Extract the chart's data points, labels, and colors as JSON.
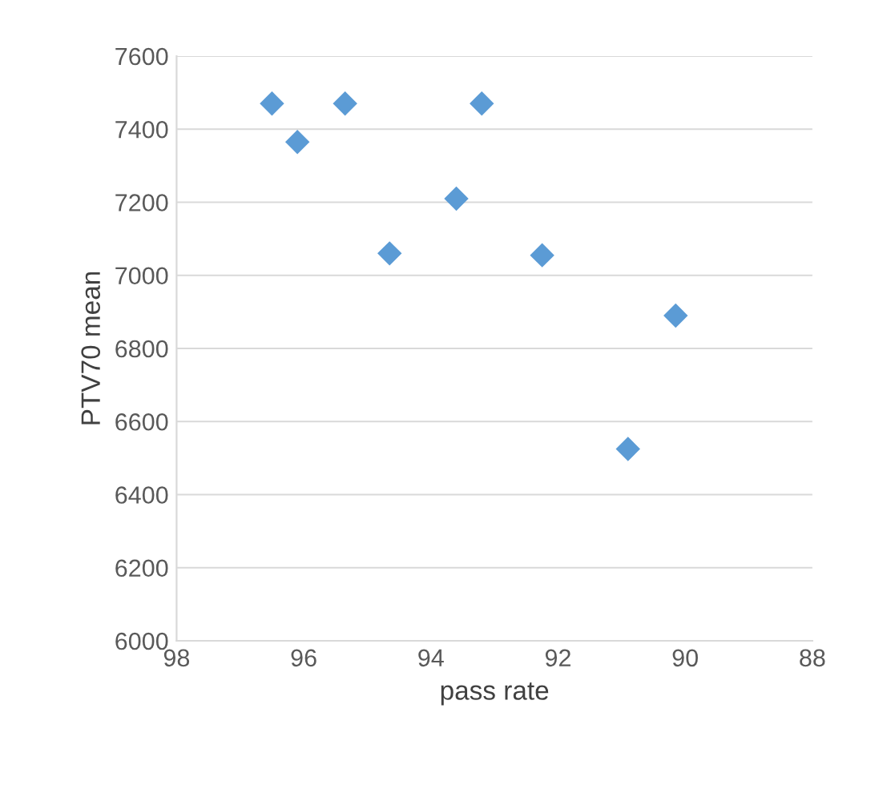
{
  "chart_data": {
    "type": "scatter",
    "xlabel": "pass rate",
    "ylabel": "PTV70 mean",
    "x": [
      96.5,
      96.1,
      95.35,
      94.65,
      93.6,
      93.2,
      92.25,
      90.9,
      90.15
    ],
    "series": [
      {
        "color": "#5b9bd5",
        "values": [
          7470,
          7365,
          7470,
          7060,
          7210,
          7470,
          7055,
          6525,
          6890
        ]
      }
    ],
    "xlim": [
      98,
      88
    ],
    "xticks": [
      98,
      96,
      94,
      92,
      90,
      88
    ],
    "ylim": [
      6000,
      7600
    ],
    "yticks": [
      6000,
      6200,
      6400,
      6600,
      6800,
      7000,
      7200,
      7400,
      7600
    ],
    "grid": "y",
    "marker": "diamond"
  }
}
